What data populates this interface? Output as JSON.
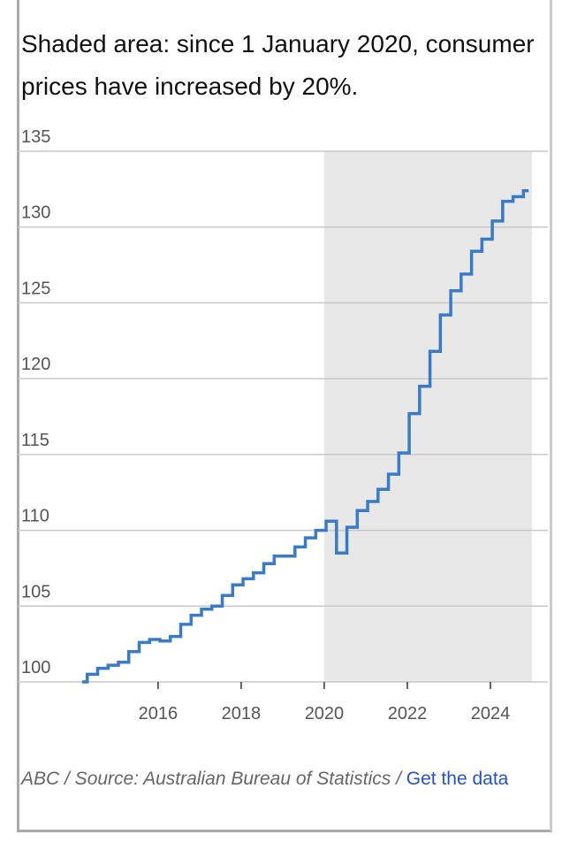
{
  "chart_data": {
    "type": "step",
    "title": "Shaded area: since 1 January 2020, consumer prices have increased by 20%.",
    "source": "ABC / Source: Australian Bureau of Statistics / ",
    "link": "Get the data",
    "x": [
      2014.17,
      2014.42,
      2014.67,
      2014.92,
      2015.17,
      2015.42,
      2015.67,
      2015.92,
      2016.17,
      2016.42,
      2016.67,
      2016.92,
      2017.17,
      2017.42,
      2017.67,
      2017.92,
      2018.17,
      2018.42,
      2018.67,
      2018.92,
      2019.17,
      2019.42,
      2019.67,
      2019.92,
      2020.17,
      2020.42,
      2020.67,
      2020.92,
      2021.17,
      2021.42,
      2021.67,
      2021.92,
      2022.17,
      2022.42,
      2022.67,
      2022.92,
      2023.17,
      2023.42,
      2023.67,
      2023.92,
      2024.17,
      2024.42,
      2024.67,
      2024.92
    ],
    "values": [
      100.0,
      100.5,
      100.9,
      101.1,
      101.3,
      102.0,
      102.6,
      102.8,
      102.7,
      103.0,
      103.8,
      104.4,
      104.8,
      105.0,
      105.7,
      106.4,
      106.8,
      107.2,
      107.8,
      108.3,
      108.3,
      108.9,
      109.5,
      110.0,
      110.6,
      108.5,
      110.2,
      111.3,
      111.9,
      112.7,
      113.7,
      115.1,
      117.7,
      119.5,
      121.8,
      124.2,
      125.8,
      126.9,
      128.4,
      129.2,
      130.4,
      131.7,
      132.0,
      132.4
    ],
    "color": "#3a7bc8",
    "shaded_range": [
      2020,
      2025
    ],
    "xlim": [
      2012.62,
      2025.0
    ],
    "xticks": [
      2016,
      2018,
      2020,
      2022,
      2024
    ],
    "ylim": [
      100,
      135
    ],
    "yticks": [
      100,
      105,
      110,
      115,
      120,
      125,
      130,
      135
    ],
    "grid": true
  }
}
